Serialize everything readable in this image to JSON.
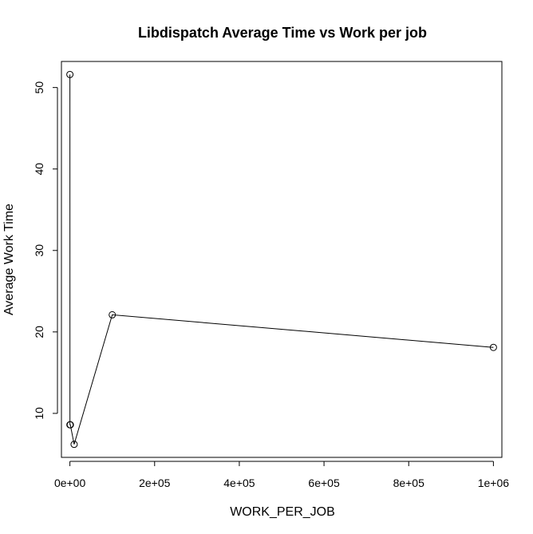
{
  "chart_data": {
    "type": "line",
    "title": "Libdispatch Average Time vs Work per job",
    "xlabel": "WORK_PER_JOB",
    "ylabel": "Average Work Time",
    "x": [
      10,
      100,
      1000,
      10000,
      100000,
      1000000
    ],
    "series": [
      {
        "values": [
          51.6,
          8.6,
          8.6,
          6.2,
          22.1,
          18.1
        ]
      }
    ],
    "xlim": [
      -20000,
      1020000
    ],
    "ylim": [
      4.6,
      53.2
    ],
    "x_ticks": [
      {
        "value": 0,
        "label": "0e+00"
      },
      {
        "value": 200000,
        "label": "2e+05"
      },
      {
        "value": 400000,
        "label": "4e+05"
      },
      {
        "value": 600000,
        "label": "6e+05"
      },
      {
        "value": 800000,
        "label": "8e+05"
      },
      {
        "value": 1000000,
        "label": "1e+06"
      }
    ],
    "y_ticks": [
      {
        "value": 10,
        "label": "10"
      },
      {
        "value": 20,
        "label": "20"
      },
      {
        "value": 30,
        "label": "30"
      },
      {
        "value": 40,
        "label": "40"
      },
      {
        "value": 50,
        "label": "50"
      }
    ],
    "markers": "open-circle",
    "line_color": "#000000",
    "grid": false,
    "legend": "none"
  }
}
